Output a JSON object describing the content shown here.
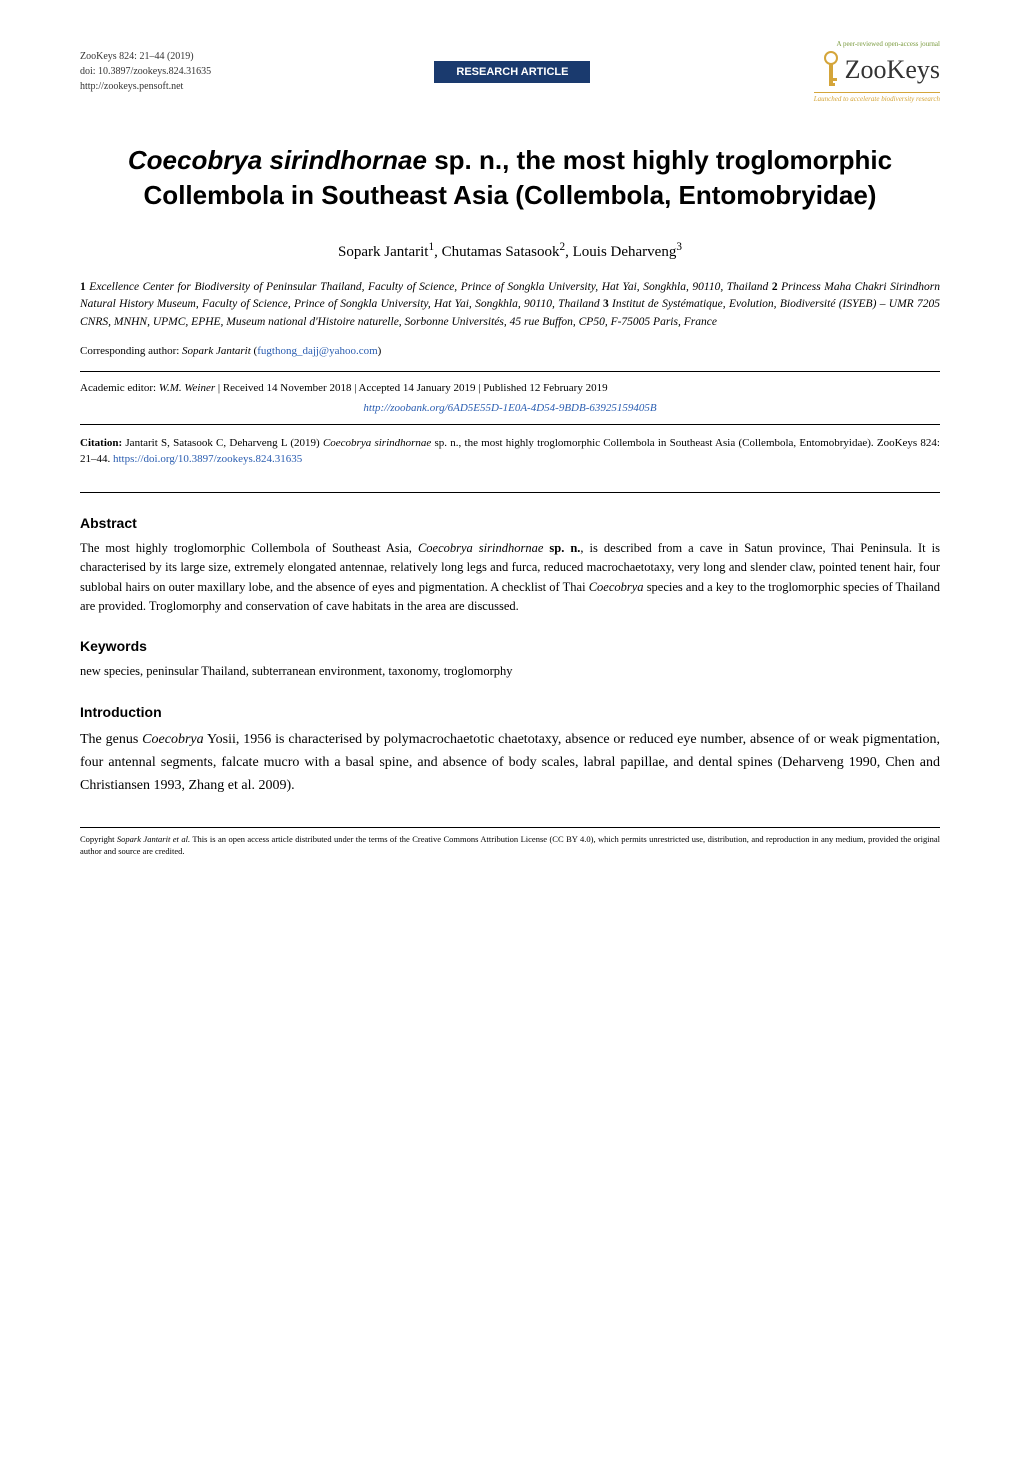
{
  "header": {
    "journal_line": "ZooKeys 824: 21–44 (2019)",
    "doi_line": "doi: 10.3897/zookeys.824.31635",
    "url_line": "http://zookeys.pensoft.net",
    "badge": "RESEARCH ARTICLE",
    "logo_top": "A peer-reviewed open-access journal",
    "logo_prefix": "Ƨ",
    "logo_main": "ZooKeys",
    "logo_tagline": "Launched to accelerate biodiversity research"
  },
  "title_html": "<em>Coecobrya sirindhornae</em> sp. n., the most highly troglomorphic Collembola in Southeast Asia (Collembola, Entomobryidae)",
  "authors_html": "Sopark Jantarit<sup>1</sup>, Chutamas Satasook<sup>2</sup>, Louis Deharveng<sup>3</sup>",
  "affiliations_html": "<span class=\"num\">1</span> Excellence Center for Biodiversity of Peninsular Thailand, Faculty of Science, Prince of Songkla University, Hat Yai, Songkhla, 90110, Thailand <span class=\"num\">2</span> Princess Maha Chakri Sirindhorn Natural History Museum, Faculty of Science, Prince of Songkla University, Hat Yai, Songkhla, 90110, Thailand <span class=\"num\">3</span> Institut de Systématique, Evolution, Biodiversité (ISYEB) – UMR 7205 CNRS, MNHN, UPMC, EPHE, Museum national d'Histoire naturelle, Sorbonne Universités, 45 rue Buffon, CP50, F-75005 Paris, France",
  "corresponding_html": "Corresponding author: <em>Sopark Jantarit</em> (<a href=\"#\">fugthong_dajj@yahoo.com</a>)",
  "editor_line_html": "Academic editor: <em>W.M. Weiner</em>  |  Received 14 November 2018  |  Accepted 14 January 2019  |  Published 12 February 2019",
  "zoobank": "http://zoobank.org/6AD5E55D-1E0A-4D54-9BDB-63925159405B",
  "citation_html": "<strong>Citation:</strong> Jantarit S, Satasook C, Deharveng L (2019) <em>Coecobrya sirindhornae</em> sp. n., the most highly troglomorphic Collembola in Southeast Asia (Collembola, Entomobryidae). ZooKeys 824: 21–44. <a href=\"#\">https://doi.org/10.3897/zookeys.824.31635</a>",
  "abstract": {
    "heading": "Abstract",
    "text_html": "The most highly troglomorphic Collembola of Southeast Asia, <em>Coecobrya sirindhornae</em> <strong>sp. n.</strong>, is described from a cave in Satun province, Thai Peninsula. It is characterised by its large size, extremely elongated antennae, relatively long legs and furca, reduced macrochaetotaxy, very long and slender claw, pointed tenent hair, four sublobal hairs on outer maxillary lobe, and the absence of eyes and pigmentation. A checklist of Thai <em>Coecobrya</em> species and a key to the troglomorphic species of Thailand are provided. Troglomorphy and conservation of cave habitats in the area are discussed."
  },
  "keywords": {
    "heading": "Keywords",
    "text": "new species, peninsular Thailand, subterranean environment, taxonomy, troglomorphy"
  },
  "introduction": {
    "heading": "Introduction",
    "text_html": "The genus <em>Coecobrya</em> Yosii, 1956 is characterised by polymacrochaetotic chaetotaxy, absence or reduced eye number, absence of or weak pigmentation, four antennal segments, falcate mucro with a basal spine, and absence of body scales, labral papillae, and dental spines (Deharveng 1990, Chen and Christiansen 1993, Zhang et al. 2009)."
  },
  "copyright_html": "Copyright <em>Sopark Jantarit et al.</em> This is an open access article distributed under the terms of the Creative Commons Attribution License (CC BY 4.0), which permits unrestricted use, distribution, and reproduction in any medium, provided the original author and source are credited.",
  "colors": {
    "badge_bg": "#1a3a6e",
    "badge_text": "#ffffff",
    "link": "#2a5db0",
    "logo_accent": "#d4a53a",
    "logo_top": "#7a9b3f"
  }
}
